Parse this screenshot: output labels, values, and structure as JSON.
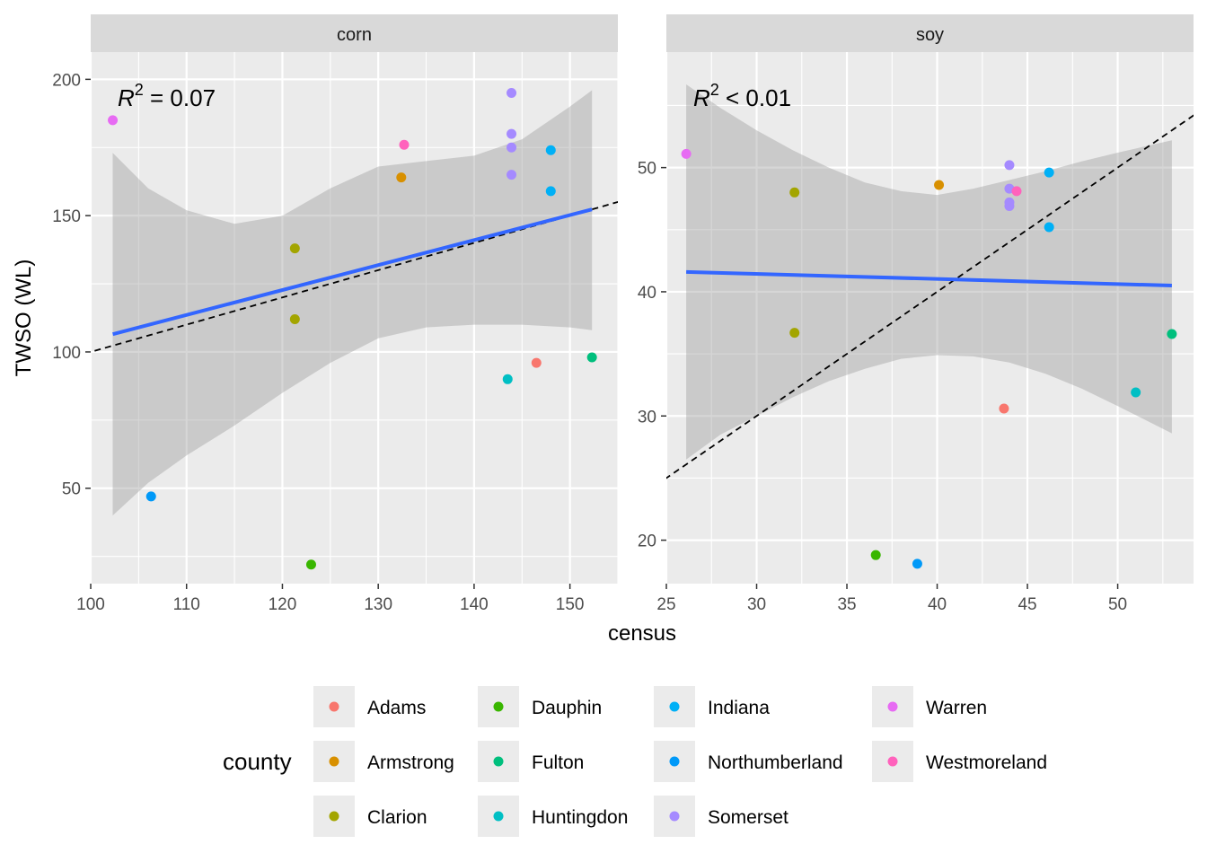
{
  "chart_data": {
    "type": "scatter",
    "y_axis_label": "TWSO (WL)",
    "x_axis_label": "census",
    "legend": {
      "title": "county",
      "placement": "bottom",
      "entries": [
        {
          "name": "Adams",
          "color": "#F8766D"
        },
        {
          "name": "Armstrong",
          "color": "#D89000"
        },
        {
          "name": "Clarion",
          "color": "#A3A500"
        },
        {
          "name": "Dauphin",
          "color": "#39B600"
        },
        {
          "name": "Fulton",
          "color": "#00BF7D"
        },
        {
          "name": "Huntingdon",
          "color": "#00BFC4"
        },
        {
          "name": "Indiana",
          "color": "#00B0F6"
        },
        {
          "name": "Northumberland",
          "color": "#0099F8"
        },
        {
          "name": "Somerset",
          "color": "#A58AFF"
        },
        {
          "name": "Warren",
          "color": "#E76BF3"
        },
        {
          "name": "Westmoreland",
          "color": "#FF62BC"
        }
      ]
    },
    "grid": true,
    "panels": [
      {
        "strip": "corn",
        "annotation_lhs": "R",
        "annotation_sup": "2",
        "annotation_rhs": " = 0.07",
        "xlim": [
          100,
          155
        ],
        "ylim": [
          15,
          210
        ],
        "x_ticks": [
          100,
          110,
          120,
          130,
          140,
          150
        ],
        "y_ticks": [
          50,
          100,
          150,
          200
        ],
        "identity_line": true,
        "fit": {
          "x": [
            102.3,
            152.3
          ],
          "y": [
            106.5,
            152.3
          ]
        },
        "ci_band": {
          "x": [
            102.3,
            106,
            110,
            115,
            120,
            125,
            130,
            135,
            140,
            145,
            150,
            152.3
          ],
          "lower": [
            40,
            52,
            62,
            73,
            85,
            96,
            105,
            109,
            110,
            110,
            109,
            108
          ],
          "upper": [
            173,
            160,
            152,
            147,
            150,
            160,
            168,
            170,
            172,
            178,
            190,
            196
          ]
        },
        "points": [
          {
            "county": "Warren",
            "x": 102.3,
            "y": 185
          },
          {
            "county": "Northumberland",
            "x": 106.3,
            "y": 47
          },
          {
            "county": "Clarion",
            "x": 121.3,
            "y": 138
          },
          {
            "county": "Clarion",
            "x": 121.3,
            "y": 112
          },
          {
            "county": "Dauphin",
            "x": 123,
            "y": 22
          },
          {
            "county": "Armstrong",
            "x": 132.4,
            "y": 164
          },
          {
            "county": "Westmoreland",
            "x": 132.7,
            "y": 176
          },
          {
            "county": "Somerset",
            "x": 143.9,
            "y": 195
          },
          {
            "county": "Somerset",
            "x": 143.9,
            "y": 180
          },
          {
            "county": "Somerset",
            "x": 143.9,
            "y": 175
          },
          {
            "county": "Somerset",
            "x": 143.9,
            "y": 165
          },
          {
            "county": "Huntingdon",
            "x": 143.5,
            "y": 90
          },
          {
            "county": "Adams",
            "x": 146.5,
            "y": 96
          },
          {
            "county": "Indiana",
            "x": 148,
            "y": 174
          },
          {
            "county": "Indiana",
            "x": 148,
            "y": 159
          },
          {
            "county": "Fulton",
            "x": 152.3,
            "y": 98
          }
        ]
      },
      {
        "strip": "soy",
        "annotation_lhs": "R",
        "annotation_sup": "2",
        "annotation_rhs": " < 0.01",
        "xlim": [
          25,
          54.2
        ],
        "ylim": [
          16.5,
          59.3
        ],
        "x_ticks": [
          25,
          30,
          35,
          40,
          45,
          50
        ],
        "y_ticks": [
          20,
          30,
          40,
          50
        ],
        "identity_line": true,
        "fit": {
          "x": [
            26.1,
            53
          ],
          "y": [
            41.6,
            40.5
          ]
        },
        "ci_band": {
          "x": [
            26.1,
            28,
            30,
            32,
            34,
            36,
            38,
            40,
            42,
            44,
            46,
            48,
            50,
            53
          ],
          "lower": [
            26.5,
            28.5,
            30.0,
            31.5,
            32.8,
            33.8,
            34.6,
            34.9,
            34.8,
            34.3,
            33.4,
            32.2,
            30.8,
            28.6
          ],
          "upper": [
            56.7,
            54.8,
            53.0,
            51.4,
            50.0,
            48.8,
            48.1,
            47.8,
            48.3,
            49.0,
            49.7,
            50.5,
            51.2,
            52.2
          ]
        },
        "points": [
          {
            "county": "Warren",
            "x": 26.1,
            "y": 51.1
          },
          {
            "county": "Clarion",
            "x": 32.1,
            "y": 48
          },
          {
            "county": "Clarion",
            "x": 32.1,
            "y": 36.7
          },
          {
            "county": "Dauphin",
            "x": 36.6,
            "y": 18.8
          },
          {
            "county": "Northumberland",
            "x": 38.9,
            "y": 18.1
          },
          {
            "county": "Armstrong",
            "x": 40.1,
            "y": 48.6
          },
          {
            "county": "Adams",
            "x": 43.7,
            "y": 30.6
          },
          {
            "county": "Somerset",
            "x": 44,
            "y": 50.2
          },
          {
            "county": "Somerset",
            "x": 44,
            "y": 48.3
          },
          {
            "county": "Somerset",
            "x": 44,
            "y": 47.2
          },
          {
            "county": "Somerset",
            "x": 44,
            "y": 46.9
          },
          {
            "county": "Westmoreland",
            "x": 44.4,
            "y": 48.1
          },
          {
            "county": "Indiana",
            "x": 46.2,
            "y": 49.6
          },
          {
            "county": "Indiana",
            "x": 46.2,
            "y": 45.2
          },
          {
            "county": "Huntingdon",
            "x": 51,
            "y": 31.9
          },
          {
            "county": "Fulton",
            "x": 53,
            "y": 36.6
          }
        ]
      }
    ]
  },
  "colors": {
    "panel_bg": "#EBEBEB",
    "strip_bg": "#D9D9D9",
    "grid": "#FFFFFF",
    "fit_line": "#3366FF",
    "ci_fill": "#999999",
    "identity": "#000000"
  }
}
